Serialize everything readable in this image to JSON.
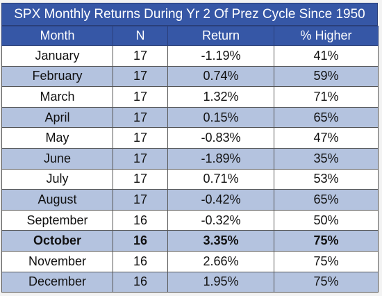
{
  "chart_data": {
    "type": "table",
    "title": "SPX Monthly Returns During Yr 2 Of Prez Cycle Since 1950",
    "columns": [
      "Month",
      "N",
      "Return",
      "% Higher"
    ],
    "rows": [
      {
        "month": "January",
        "n": "17",
        "return": "-1.19%",
        "higher": "41%",
        "bold": false
      },
      {
        "month": "February",
        "n": "17",
        "return": "0.74%",
        "higher": "59%",
        "bold": false
      },
      {
        "month": "March",
        "n": "17",
        "return": "1.32%",
        "higher": "71%",
        "bold": false
      },
      {
        "month": "April",
        "n": "17",
        "return": "0.15%",
        "higher": "65%",
        "bold": false
      },
      {
        "month": "May",
        "n": "17",
        "return": "-0.83%",
        "higher": "47%",
        "bold": false
      },
      {
        "month": "June",
        "n": "17",
        "return": "-1.89%",
        "higher": "35%",
        "bold": false
      },
      {
        "month": "July",
        "n": "17",
        "return": "0.71%",
        "higher": "53%",
        "bold": false
      },
      {
        "month": "August",
        "n": "17",
        "return": "-0.42%",
        "higher": "65%",
        "bold": false
      },
      {
        "month": "September",
        "n": "16",
        "return": "-0.32%",
        "higher": "50%",
        "bold": false
      },
      {
        "month": "October",
        "n": "16",
        "return": "3.35%",
        "higher": "75%",
        "bold": true
      },
      {
        "month": "November",
        "n": "16",
        "return": "2.66%",
        "higher": "75%",
        "bold": false
      },
      {
        "month": "December",
        "n": "16",
        "return": "1.95%",
        "higher": "75%",
        "bold": false
      }
    ]
  },
  "colors": {
    "header_bg": "#3657a6",
    "header_text": "#ffffff",
    "band_row": "#b4c3df",
    "plain_row": "#ffffff"
  }
}
